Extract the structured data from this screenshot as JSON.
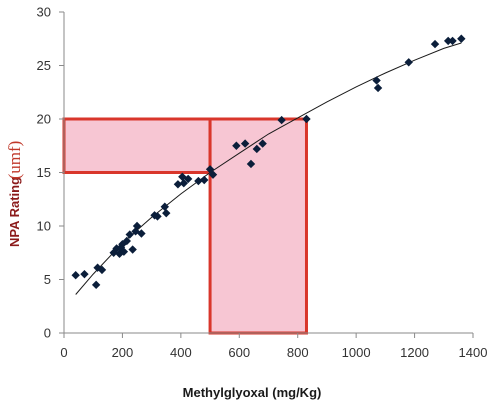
{
  "chart_data": {
    "type": "scatter",
    "title": "",
    "xlabel": "Methylglyoxal (mg/Kg)",
    "ylabel": "NPA Rating",
    "ylabel_suffix": "(umf)",
    "xlim": [
      0,
      1400
    ],
    "ylim": [
      0,
      30
    ],
    "x_ticks": [
      0,
      200,
      400,
      600,
      800,
      1000,
      1200,
      1400
    ],
    "y_ticks": [
      0,
      5,
      10,
      15,
      20,
      25,
      30
    ],
    "grid": false,
    "legend": "none",
    "marker_color": "#0b1e3a",
    "highlight_color": "#d9362b",
    "highlight_fill": "#f7c6d3",
    "series": [
      {
        "values": [
          [
            40,
            5.4
          ],
          [
            70,
            5.5
          ],
          [
            110,
            4.5
          ],
          [
            115,
            6.1
          ],
          [
            130,
            5.9
          ],
          [
            170,
            7.5
          ],
          [
            180,
            7.9
          ],
          [
            190,
            7.4
          ],
          [
            195,
            8.0
          ],
          [
            200,
            8.3
          ],
          [
            205,
            7.6
          ],
          [
            215,
            8.6
          ],
          [
            225,
            9.2
          ],
          [
            235,
            7.8
          ],
          [
            245,
            9.5
          ],
          [
            250,
            10.0
          ],
          [
            265,
            9.3
          ],
          [
            310,
            11.0
          ],
          [
            320,
            10.9
          ],
          [
            345,
            11.8
          ],
          [
            350,
            11.2
          ],
          [
            390,
            13.9
          ],
          [
            405,
            14.6
          ],
          [
            410,
            14.0
          ],
          [
            425,
            14.4
          ],
          [
            460,
            14.2
          ],
          [
            480,
            14.3
          ],
          [
            500,
            15.3
          ],
          [
            510,
            14.8
          ],
          [
            590,
            17.5
          ],
          [
            620,
            17.7
          ],
          [
            640,
            15.8
          ],
          [
            660,
            17.2
          ],
          [
            680,
            17.7
          ],
          [
            745,
            19.9
          ],
          [
            830,
            20.0
          ],
          [
            1070,
            23.6
          ],
          [
            1075,
            22.9
          ],
          [
            1180,
            25.3
          ],
          [
            1270,
            27.0
          ],
          [
            1315,
            27.3
          ],
          [
            1330,
            27.3
          ],
          [
            1360,
            27.5
          ]
        ]
      }
    ],
    "trendline": [
      [
        40,
        3.6
      ],
      [
        100,
        5.5
      ],
      [
        200,
        8.4
      ],
      [
        300,
        10.8
      ],
      [
        400,
        13.0
      ],
      [
        500,
        15.0
      ],
      [
        600,
        16.8
      ],
      [
        700,
        18.6
      ],
      [
        800,
        20.1
      ],
      [
        900,
        21.6
      ],
      [
        1000,
        23.0
      ],
      [
        1100,
        24.3
      ],
      [
        1200,
        25.5
      ],
      [
        1300,
        26.6
      ],
      [
        1360,
        27.1
      ]
    ],
    "highlights": [
      {
        "x": [
          0,
          500
        ],
        "y": [
          15,
          20
        ]
      },
      {
        "x": [
          500,
          830
        ],
        "y": [
          0,
          20
        ]
      }
    ]
  }
}
